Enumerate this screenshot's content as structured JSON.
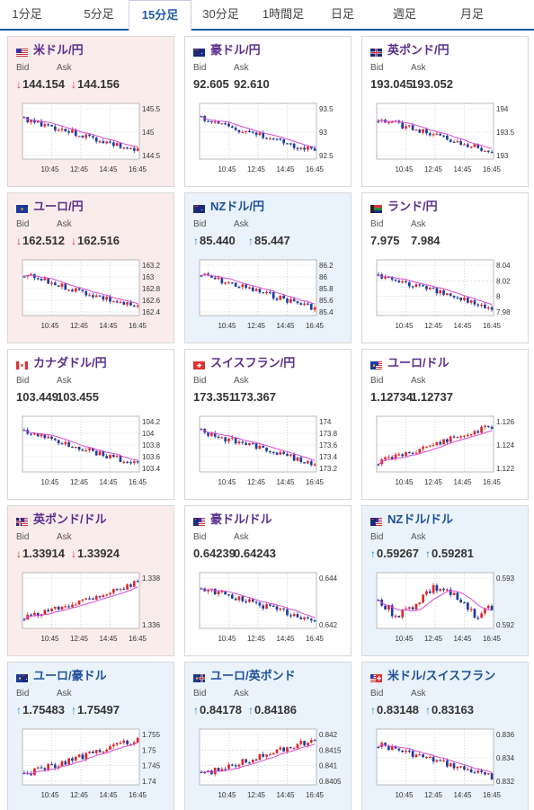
{
  "tabs": [
    {
      "label": "1分足",
      "active": false
    },
    {
      "label": "5分足",
      "active": false
    },
    {
      "label": "15分足",
      "active": true
    },
    {
      "label": "30分足",
      "active": false
    },
    {
      "label": "1時間足",
      "active": false
    },
    {
      "label": "日足",
      "active": false
    },
    {
      "label": "週足",
      "active": false
    },
    {
      "label": "月足",
      "active": false
    }
  ],
  "labels": {
    "bid": "Bid",
    "ask": "Ask"
  },
  "colors": {
    "up_candle": "#e0262a",
    "down_candle": "#1e3c9c",
    "ma_line": "#d94ad6",
    "up_arrow": "#168ad0",
    "down_arrow": "#d22233"
  },
  "cards": [
    {
      "pair": "米ドル/円",
      "flag": "us-flag-icon",
      "trend": "down",
      "bid": "144.154",
      "ask": "144.156",
      "yticks": [
        "145.5",
        "145",
        "144.5"
      ],
      "xticks": [
        "10:45",
        "12:45",
        "14:45",
        "16:45"
      ],
      "shape": "down"
    },
    {
      "pair": "豪ドル/円",
      "flag": "au-flag-icon",
      "trend": "flat",
      "bid": "92.605",
      "ask": "92.610",
      "yticks": [
        "93.5",
        "93",
        "92.5"
      ],
      "xticks": [
        "10:45",
        "12:45",
        "14:45",
        "16:45"
      ],
      "shape": "down"
    },
    {
      "pair": "英ポンド/円",
      "flag": "uk-flag-icon",
      "trend": "flat",
      "bid": "193.045",
      "ask": "193.052",
      "yticks": [
        "194",
        "193.5",
        "193"
      ],
      "xticks": [
        "10:45",
        "12:45",
        "14:45",
        "16:45"
      ],
      "shape": "down"
    },
    {
      "pair": "ユーロ/円",
      "flag": "eu-flag-icon",
      "trend": "down",
      "bid": "162.512",
      "ask": "162.516",
      "yticks": [
        "163.2",
        "163",
        "162.8",
        "162.6",
        "162.4"
      ],
      "xticks": [
        "10:45",
        "12:45",
        "14:45",
        "16:45"
      ],
      "shape": "down"
    },
    {
      "pair": "NZドル/円",
      "flag": "nz-flag-icon",
      "trend": "up",
      "bid": "85.440",
      "ask": "85.447",
      "yticks": [
        "86.2",
        "86",
        "85.8",
        "85.6",
        "85.4"
      ],
      "xticks": [
        "10:45",
        "12:45",
        "14:45",
        "16:45"
      ],
      "shape": "down"
    },
    {
      "pair": "ランド/円",
      "flag": "za-flag-icon",
      "trend": "flat",
      "bid": "7.975",
      "ask": "7.984",
      "yticks": [
        "8.04",
        "8.02",
        "8",
        "7.98"
      ],
      "xticks": [
        "10:45",
        "12:45",
        "14:45",
        "16:45"
      ],
      "shape": "down"
    },
    {
      "pair": "カナダドル/円",
      "flag": "ca-flag-icon",
      "trend": "flat",
      "bid": "103.449",
      "ask": "103.455",
      "yticks": [
        "104.2",
        "104",
        "103.8",
        "103.6",
        "103.4"
      ],
      "xticks": [
        "10:45",
        "12:45",
        "14:45",
        "16:45"
      ],
      "shape": "down"
    },
    {
      "pair": "スイスフラン/円",
      "flag": "ch-flag-icon",
      "trend": "flat",
      "bid": "173.351",
      "ask": "173.367",
      "yticks": [
        "174",
        "173.8",
        "173.6",
        "173.4",
        "173.2"
      ],
      "xticks": [
        "10:45",
        "12:45",
        "14:45",
        "16:45"
      ],
      "shape": "down"
    },
    {
      "pair": "ユーロ/ドル",
      "flag": "eu-us-flag-icon",
      "trend": "flat",
      "bid": "1.12734",
      "ask": "1.12737",
      "yticks": [
        "1.126",
        "1.124",
        "1.122"
      ],
      "xticks": [
        "10:45",
        "12:45",
        "14:45",
        "16:45"
      ],
      "shape": "up"
    },
    {
      "pair": "英ポンド/ドル",
      "flag": "uk-us-flag-icon",
      "trend": "down",
      "bid": "1.33914",
      "ask": "1.33924",
      "yticks": [
        "1.338",
        "1.336"
      ],
      "xticks": [
        "10:45",
        "12:45",
        "14:45",
        "16:45"
      ],
      "shape": "up"
    },
    {
      "pair": "豪ドル/ドル",
      "flag": "au-us-flag-icon",
      "trend": "flat",
      "bid": "0.64239",
      "ask": "0.64243",
      "yticks": [
        "0.644",
        "0.642"
      ],
      "xticks": [
        "10:45",
        "12:45",
        "14:45",
        "16:45"
      ],
      "shape": "down"
    },
    {
      "pair": "NZドル/ドル",
      "flag": "nz-us-flag-icon",
      "trend": "up",
      "bid": "0.59267",
      "ask": "0.59281",
      "yticks": [
        "0.593",
        "0.592"
      ],
      "xticks": [
        "10:45",
        "12:45",
        "14:45",
        "16:45"
      ],
      "shape": "wave"
    },
    {
      "pair": "ユーロ/豪ドル",
      "flag": "eu-au-flag-icon",
      "trend": "up",
      "bid": "1.75483",
      "ask": "1.75497",
      "yticks": [
        "1.755",
        "1.75",
        "1.745",
        "1.74"
      ],
      "xticks": [
        "10:45",
        "12:45",
        "14:45",
        "16:45"
      ],
      "shape": "up"
    },
    {
      "pair": "ユーロ/英ポンド",
      "flag": "eu-uk-flag-icon",
      "trend": "up",
      "bid": "0.84178",
      "ask": "0.84186",
      "yticks": [
        "0.842",
        "0.8415",
        "0.841",
        "0.8405"
      ],
      "xticks": [
        "10:45",
        "12:45",
        "14:45",
        "16:45"
      ],
      "shape": "up"
    },
    {
      "pair": "米ドル/スイスフラン",
      "flag": "us-ch-flag-icon",
      "trend": "up",
      "bid": "0.83148",
      "ask": "0.83163",
      "yticks": [
        "0.836",
        "0.834",
        "0.832"
      ],
      "xticks": [
        "10:45",
        "12:45",
        "14:45",
        "16:45"
      ],
      "shape": "down"
    }
  ]
}
